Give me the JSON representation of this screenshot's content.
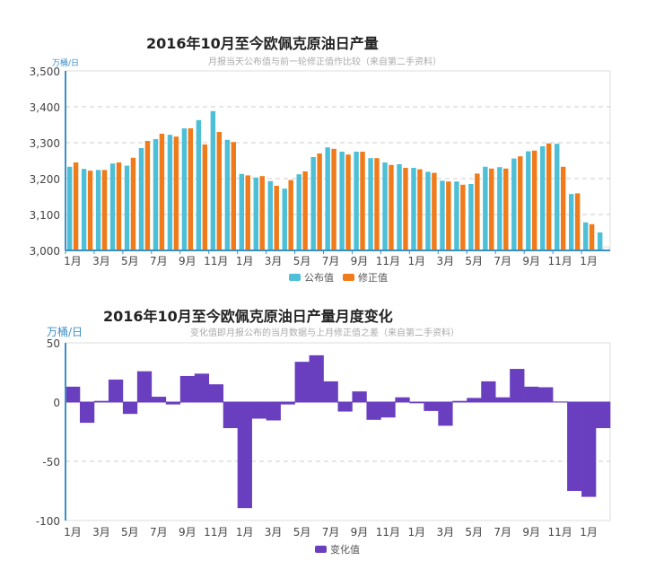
{
  "chart_data": [
    {
      "type": "bar",
      "title": "2016年10月至今欧佩克原油日产量",
      "subtitle": "月报当天公布值与前一轮修正值作比较（来自第二手资料）",
      "ylabel": "万桶/日",
      "xlabel": "",
      "ylim": [
        3000,
        3500
      ],
      "yticks": [
        "3,000",
        "3,100",
        "3,200",
        "3,300",
        "3,400",
        "3,500"
      ],
      "ytick_values": [
        3000,
        3100,
        3200,
        3300,
        3400,
        3500
      ],
      "xtick_labels": [
        "1月",
        "3月",
        "5月",
        "7月",
        "9月",
        "11月",
        "1月",
        "3月",
        "5月",
        "7月",
        "9月",
        "11月",
        "1月",
        "3月",
        "5月",
        "7月",
        "9月",
        "11月",
        "1月"
      ],
      "grid": true,
      "legend": "bottom",
      "series": [
        {
          "name": "公布值",
          "color": "#4dbfd6",
          "values": [
            3233,
            3227,
            3224,
            3242,
            3236,
            3285,
            3310,
            3322,
            3340,
            3363,
            3388,
            3308,
            3213,
            3203,
            3193,
            3172,
            3212,
            3260,
            3287,
            3275,
            3275,
            3257,
            3245,
            3240,
            3230,
            3219,
            3194,
            3192,
            3185,
            3233,
            3232,
            3256,
            3276,
            3290,
            3297,
            3157,
            3078,
            3050
          ]
        },
        {
          "name": "修正值",
          "color": "#f07b1a",
          "values": [
            3245,
            3222,
            3224,
            3245,
            3258,
            3305,
            3325,
            3317,
            3340,
            3295,
            3330,
            3302,
            3209,
            3207,
            3180,
            3196,
            3220,
            3270,
            3283,
            3267,
            3275,
            3257,
            3238,
            3230,
            3226,
            3216,
            3192,
            3183,
            3214,
            3228,
            3228,
            3262,
            3278,
            3298,
            3233,
            3159,
            3073,
            3010
          ]
        }
      ]
    },
    {
      "type": "bar",
      "title": "2016年10月至今欧佩克原油日产量月度变化",
      "subtitle": "变化值即月报公布的当月数据与上月修正值之差（来自第二手资料）",
      "ylabel": "万桶/日",
      "xlabel": "",
      "ylim": [
        -100,
        50
      ],
      "yticks": [
        "-100",
        "-50",
        "0",
        "50"
      ],
      "ytick_values": [
        -100,
        -50,
        0,
        50
      ],
      "xtick_labels": [
        "1月",
        "3月",
        "5月",
        "7月",
        "9月",
        "11月",
        "1月",
        "3月",
        "5月",
        "7月",
        "9月",
        "11月",
        "1月",
        "3月",
        "5月",
        "7月",
        "9月",
        "11月",
        "1月"
      ],
      "grid": true,
      "legend": "bottom",
      "series": [
        {
          "name": "变化值",
          "color": "#6a3fbf",
          "values": [
            13,
            -17.5,
            1,
            19,
            -10,
            26,
            4.5,
            -2,
            22,
            24,
            15,
            -22,
            -89.5,
            -14,
            -15.5,
            -2,
            34,
            39.5,
            17.5,
            -8,
            9,
            -15,
            -13,
            4,
            -1,
            -7.5,
            -20,
            1,
            3.5,
            17.5,
            4,
            28,
            13,
            12.5,
            0.5,
            -75,
            -80,
            -22
          ]
        }
      ]
    }
  ]
}
